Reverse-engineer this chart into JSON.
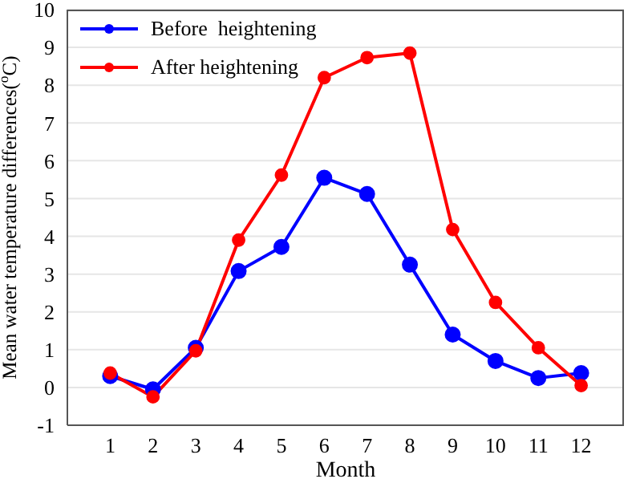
{
  "chart_data": {
    "type": "line",
    "xlabel": "Month",
    "ylabel": "Mean water temperature differences($^{o}$C)",
    "x": [
      1,
      2,
      3,
      4,
      5,
      6,
      7,
      8,
      9,
      10,
      11,
      12
    ],
    "series": [
      {
        "name": "Before  heightening",
        "color": "#0000ff",
        "values": [
          0.3,
          -0.05,
          1.05,
          3.08,
          3.72,
          5.55,
          5.12,
          3.25,
          1.4,
          0.7,
          0.25,
          0.38
        ]
      },
      {
        "name": "After heightening",
        "color": "#ff0000",
        "values": [
          0.38,
          -0.25,
          0.97,
          3.9,
          5.62,
          8.2,
          8.73,
          8.85,
          4.18,
          2.25,
          1.05,
          0.05
        ]
      }
    ],
    "xlim": [
      0,
      13
    ],
    "xticks": [
      1,
      2,
      3,
      4,
      5,
      6,
      7,
      8,
      9,
      10,
      11,
      12
    ],
    "ylim": [
      -1,
      10
    ],
    "yticks": [
      -1,
      0,
      1,
      2,
      3,
      4,
      5,
      6,
      7,
      8,
      9,
      10
    ],
    "grid": "y",
    "legend": "top left",
    "marker": "circle",
    "line_style": "solid"
  }
}
